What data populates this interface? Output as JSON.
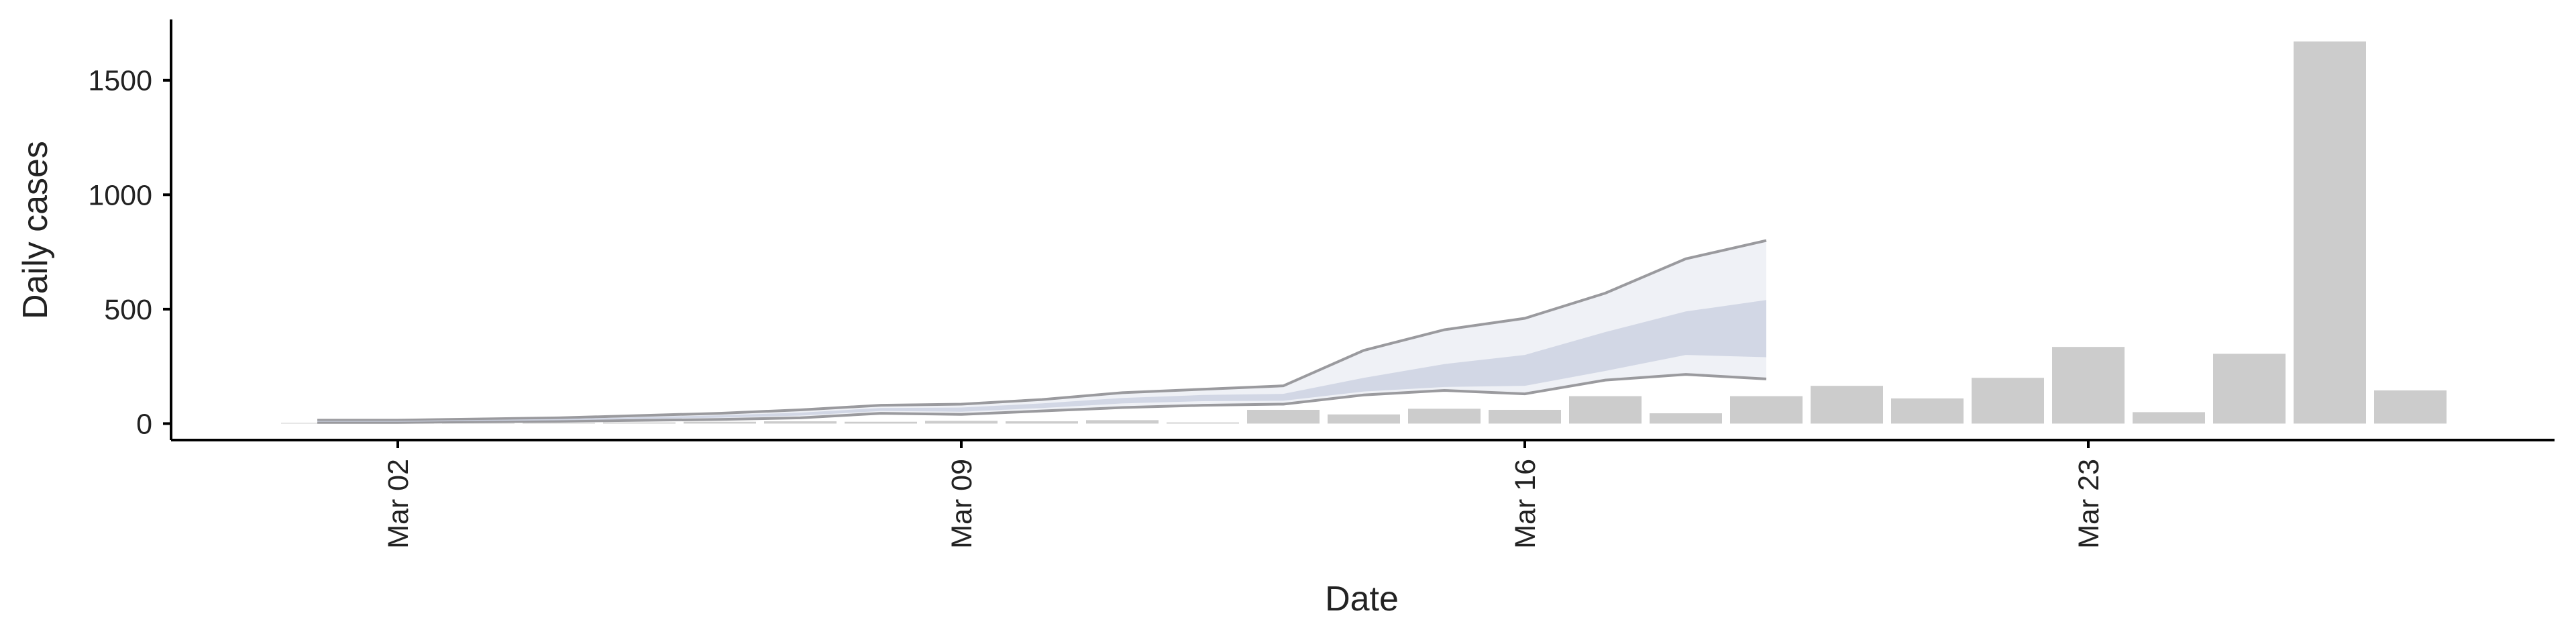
{
  "chart_data": {
    "type": "bar",
    "xlabel": "Date",
    "ylabel": "Daily cases",
    "categories": [
      null,
      "Mar 02",
      null,
      null,
      null,
      null,
      null,
      null,
      "Mar 09",
      null,
      null,
      null,
      null,
      null,
      null,
      "Mar 16",
      null,
      null,
      null,
      null,
      null,
      null,
      "Mar 23",
      null,
      null,
      null,
      null
    ],
    "values": [
      3,
      1,
      2,
      3,
      5,
      8,
      10,
      8,
      12,
      10,
      15,
      5,
      60,
      40,
      65,
      60,
      120,
      45,
      120,
      165,
      110,
      200,
      335,
      50,
      305,
      1670,
      145
    ],
    "color": "#cccccc",
    "bands": [
      {
        "color": "#eceef4",
        "line_color": "#9a9a9e",
        "upper": [
          15,
          15,
          20,
          25,
          35,
          45,
          60,
          80,
          85,
          105,
          135,
          150,
          165,
          320,
          410,
          460,
          570,
          720,
          800,
          null,
          null,
          null,
          null,
          null,
          null,
          null,
          null
        ],
        "lower": [
          5,
          5,
          8,
          10,
          14,
          18,
          25,
          45,
          40,
          55,
          70,
          80,
          85,
          125,
          145,
          130,
          190,
          215,
          195,
          null,
          null,
          null,
          null,
          null,
          null,
          null,
          null
        ]
      },
      {
        "color": "#ccd2e2",
        "line_color": null,
        "upper": [
          12,
          12,
          16,
          20,
          28,
          36,
          48,
          68,
          70,
          88,
          112,
          125,
          130,
          200,
          260,
          300,
          400,
          490,
          540,
          null,
          null,
          null,
          null,
          null,
          null,
          null,
          null
        ],
        "lower": [
          8,
          8,
          11,
          14,
          20,
          26,
          35,
          55,
          52,
          68,
          88,
          98,
          100,
          140,
          160,
          165,
          230,
          300,
          290,
          null,
          null,
          null,
          null,
          null,
          null,
          null,
          null
        ]
      }
    ],
    "ylim": [
      -72,
      1766
    ],
    "yticks": [
      0,
      500,
      1000,
      1500
    ],
    "grid": false
  }
}
